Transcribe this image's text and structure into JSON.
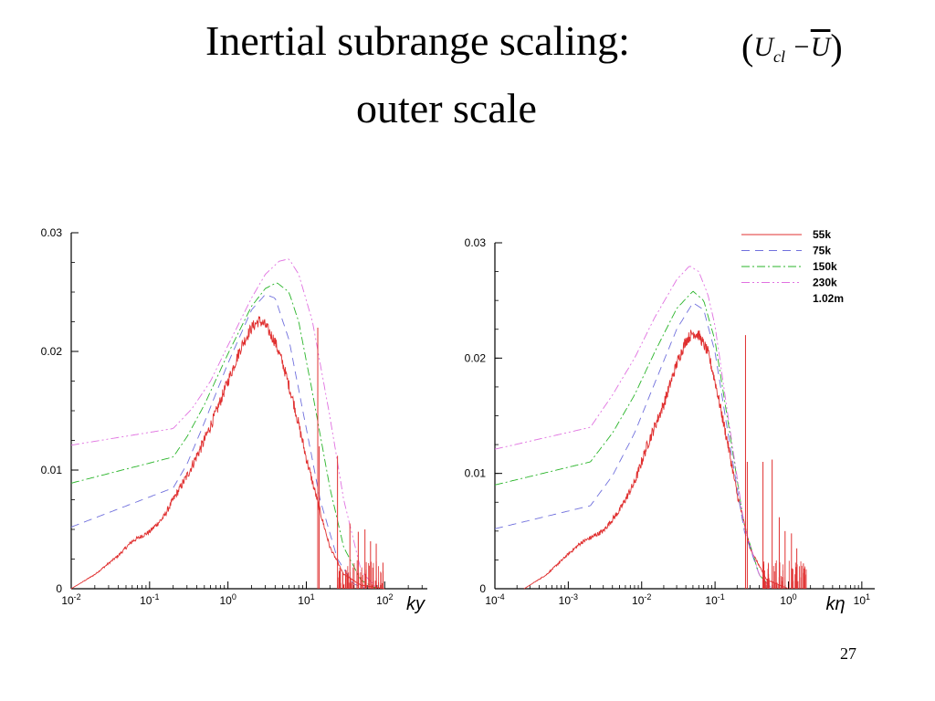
{
  "slide": {
    "title_line1": "Inertial subrange scaling:",
    "title_line2": "outer scale",
    "formula": {
      "U": "U",
      "sub": "cl",
      "minus": "−",
      "Ubar": "U"
    },
    "page_number": "27"
  },
  "legend": {
    "entries": [
      {
        "label": "55k",
        "color": "#e03030",
        "dash": ""
      },
      {
        "label": "75k",
        "color": "#7070dd",
        "dash": "9,6"
      },
      {
        "label": "150k",
        "color": "#28b428",
        "dash": "9,3,2,3"
      },
      {
        "label": "230k",
        "color": "#e070e0",
        "dash": "9,3,2,3,2,3"
      },
      {
        "label": "1.02m",
        "color": "",
        "dash": ""
      }
    ]
  },
  "chart_data": [
    {
      "type": "line",
      "xlabel": "ky",
      "ylabel": "",
      "xscale": "log",
      "xlim": [
        0.01,
        350
      ],
      "ylim": [
        0,
        0.03
      ],
      "yticks": [
        0,
        0.01,
        0.02,
        0.03
      ],
      "ytick_labels": [
        "0",
        "0.01",
        "0.02",
        "0.03"
      ],
      "xtick_exponents": [
        "-2",
        "-1",
        "0",
        "1",
        "2"
      ],
      "series": [
        {
          "name": "55k",
          "color": "#e03030",
          "noisy": true,
          "points": [
            [
              0.01,
              0
            ],
            [
              0.02,
              0.0012
            ],
            [
              0.04,
              0.0028
            ],
            [
              0.06,
              0.004
            ],
            [
              0.1,
              0.0048
            ],
            [
              0.15,
              0.006
            ],
            [
              0.2,
              0.0075
            ],
            [
              0.3,
              0.0095
            ],
            [
              0.5,
              0.0125
            ],
            [
              0.7,
              0.0148
            ],
            [
              1,
              0.0175
            ],
            [
              1.5,
              0.0205
            ],
            [
              2,
              0.022
            ],
            [
              2.5,
              0.0226
            ],
            [
              3,
              0.0222
            ],
            [
              4,
              0.0208
            ],
            [
              5,
              0.019
            ],
            [
              7,
              0.0155
            ],
            [
              10,
              0.011
            ],
            [
              15,
              0.0065
            ],
            [
              20,
              0.0035
            ],
            [
              30,
              0.0012
            ],
            [
              50,
              0.0003
            ],
            [
              100,
              0
            ]
          ]
        },
        {
          "name": "75k",
          "color": "#7070dd",
          "points": [
            [
              0.01,
              0.0052
            ],
            [
              0.2,
              0.0085
            ],
            [
              0.3,
              0.0105
            ],
            [
              0.5,
              0.014
            ],
            [
              1,
              0.019
            ],
            [
              2,
              0.0235
            ],
            [
              3,
              0.0248
            ],
            [
              4,
              0.0245
            ],
            [
              6,
              0.021
            ],
            [
              10,
              0.0135
            ],
            [
              15,
              0.0075
            ],
            [
              25,
              0.0025
            ],
            [
              40,
              0.0004
            ],
            [
              60,
              0
            ]
          ]
        },
        {
          "name": "150k",
          "color": "#28b428",
          "points": [
            [
              0.01,
              0.0089
            ],
            [
              0.2,
              0.0111
            ],
            [
              0.3,
              0.0128
            ],
            [
              0.5,
              0.0155
            ],
            [
              1,
              0.0198
            ],
            [
              2,
              0.0238
            ],
            [
              3,
              0.0253
            ],
            [
              4.2,
              0.0258
            ],
            [
              6,
              0.025
            ],
            [
              8,
              0.0225
            ],
            [
              12,
              0.0165
            ],
            [
              20,
              0.0085
            ],
            [
              30,
              0.0035
            ],
            [
              50,
              0.0007
            ],
            [
              80,
              0
            ]
          ]
        },
        {
          "name": "230k",
          "color": "#e070e0",
          "points": [
            [
              0.01,
              0.0121
            ],
            [
              0.2,
              0.0135
            ],
            [
              0.35,
              0.0152
            ],
            [
              0.6,
              0.0175
            ],
            [
              1,
              0.0205
            ],
            [
              2,
              0.0245
            ],
            [
              3,
              0.0265
            ],
            [
              4.5,
              0.0276
            ],
            [
              6,
              0.0278
            ],
            [
              8,
              0.0265
            ],
            [
              12,
              0.0225
            ],
            [
              20,
              0.0145
            ],
            [
              30,
              0.0075
            ],
            [
              50,
              0.0015
            ],
            [
              80,
              0
            ]
          ]
        }
      ],
      "spikes": [
        [
          14,
          0.022
        ],
        [
          14.6,
          0.012
        ],
        [
          25,
          0.0112
        ],
        [
          36,
          0.0055
        ],
        [
          46,
          0.0048
        ],
        [
          56,
          0.005
        ],
        [
          66,
          0.004
        ],
        [
          78,
          0.0038
        ],
        [
          95,
          0.0022
        ]
      ]
    },
    {
      "type": "line",
      "xlabel": "kη",
      "ylabel": "",
      "xscale": "log",
      "xlim": [
        0.0001,
        15
      ],
      "ylim": [
        0,
        0.03
      ],
      "yticks": [
        0,
        0.01,
        0.02,
        0.03
      ],
      "ytick_labels": [
        "0",
        "0.01",
        "0.02",
        "0.03"
      ],
      "xtick_exponents": [
        "-4",
        "-3",
        "-2",
        "-1",
        "0",
        "1"
      ],
      "legend_position": "top-right",
      "series": [
        {
          "name": "55k",
          "color": "#e03030",
          "noisy": true,
          "points": [
            [
              0.00025,
              0
            ],
            [
              0.0005,
              0.0012
            ],
            [
              0.001,
              0.003
            ],
            [
              0.0015,
              0.004
            ],
            [
              0.003,
              0.005
            ],
            [
              0.005,
              0.0068
            ],
            [
              0.008,
              0.0092
            ],
            [
              0.012,
              0.0125
            ],
            [
              0.02,
              0.016
            ],
            [
              0.03,
              0.0195
            ],
            [
              0.04,
              0.0215
            ],
            [
              0.05,
              0.0222
            ],
            [
              0.06,
              0.022
            ],
            [
              0.08,
              0.0205
            ],
            [
              0.1,
              0.018
            ],
            [
              0.15,
              0.0125
            ],
            [
              0.2,
              0.0082
            ],
            [
              0.3,
              0.0035
            ],
            [
              0.5,
              0.0008
            ],
            [
              1,
              0
            ]
          ]
        },
        {
          "name": "75k",
          "color": "#7070dd",
          "points": [
            [
              0.0001,
              0.0052
            ],
            [
              0.002,
              0.0072
            ],
            [
              0.004,
              0.0098
            ],
            [
              0.008,
              0.0135
            ],
            [
              0.015,
              0.0178
            ],
            [
              0.03,
              0.0225
            ],
            [
              0.05,
              0.0248
            ],
            [
              0.07,
              0.0242
            ],
            [
              0.1,
              0.0205
            ],
            [
              0.15,
              0.0135
            ],
            [
              0.25,
              0.005
            ],
            [
              0.4,
              0.0012
            ],
            [
              0.6,
              0
            ]
          ]
        },
        {
          "name": "150k",
          "color": "#28b428",
          "points": [
            [
              0.0001,
              0.009
            ],
            [
              0.002,
              0.011
            ],
            [
              0.004,
              0.0135
            ],
            [
              0.008,
              0.0168
            ],
            [
              0.015,
              0.0205
            ],
            [
              0.03,
              0.0243
            ],
            [
              0.05,
              0.0258
            ],
            [
              0.07,
              0.025
            ],
            [
              0.1,
              0.0215
            ],
            [
              0.15,
              0.0145
            ],
            [
              0.25,
              0.0055
            ],
            [
              0.4,
              0.0012
            ],
            [
              0.6,
              0
            ]
          ]
        },
        {
          "name": "230k",
          "color": "#e070e0",
          "points": [
            [
              0.0001,
              0.0121
            ],
            [
              0.002,
              0.014
            ],
            [
              0.004,
              0.0168
            ],
            [
              0.008,
              0.02
            ],
            [
              0.015,
              0.0235
            ],
            [
              0.03,
              0.0268
            ],
            [
              0.045,
              0.028
            ],
            [
              0.06,
              0.0275
            ],
            [
              0.08,
              0.0255
            ],
            [
              0.1,
              0.0228
            ],
            [
              0.15,
              0.015
            ],
            [
              0.25,
              0.0055
            ],
            [
              0.4,
              0.0012
            ],
            [
              0.6,
              0
            ]
          ]
        }
      ],
      "spikes": [
        [
          0.26,
          0.022
        ],
        [
          0.275,
          0.011
        ],
        [
          0.45,
          0.011
        ],
        [
          0.6,
          0.0112
        ],
        [
          0.75,
          0.0062
        ],
        [
          0.9,
          0.005
        ],
        [
          1.1,
          0.0048
        ],
        [
          1.3,
          0.0035
        ],
        [
          1.6,
          0.0022
        ]
      ]
    }
  ]
}
